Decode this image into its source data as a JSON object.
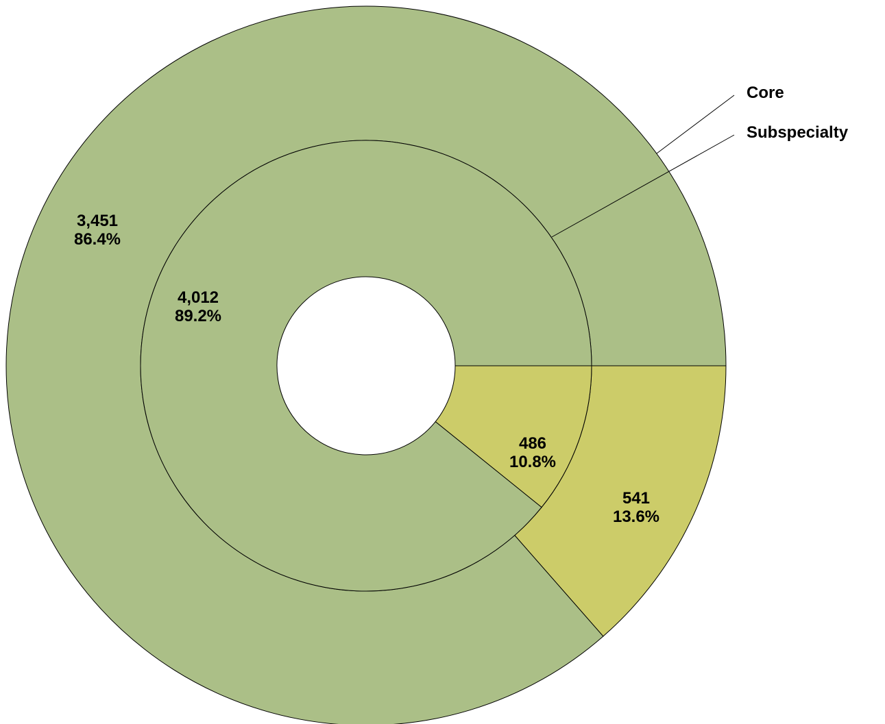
{
  "chart_data": {
    "type": "pie",
    "variant": "doughnut",
    "series": [
      {
        "ring": "outer",
        "slices": [
          {
            "name": "Core",
            "value": 3451,
            "percent_label": "86.4%",
            "value_label": "3,451",
            "color": "#abbf87"
          },
          {
            "name": "Subspecialty",
            "value": 541,
            "percent_label": "13.6%",
            "value_label": "541",
            "color": "#cccc69"
          }
        ]
      },
      {
        "ring": "inner",
        "slices": [
          {
            "name": "Core",
            "value": 4012,
            "percent_label": "89.2%",
            "value_label": "4,012",
            "color": "#abbf87"
          },
          {
            "name": "Subspecialty",
            "value": 486,
            "percent_label": "10.8%",
            "value_label": "486",
            "color": "#cccc69"
          }
        ]
      }
    ],
    "legend": {
      "placement": "top-right",
      "entries": [
        "Core",
        "Subspecialty"
      ]
    }
  }
}
